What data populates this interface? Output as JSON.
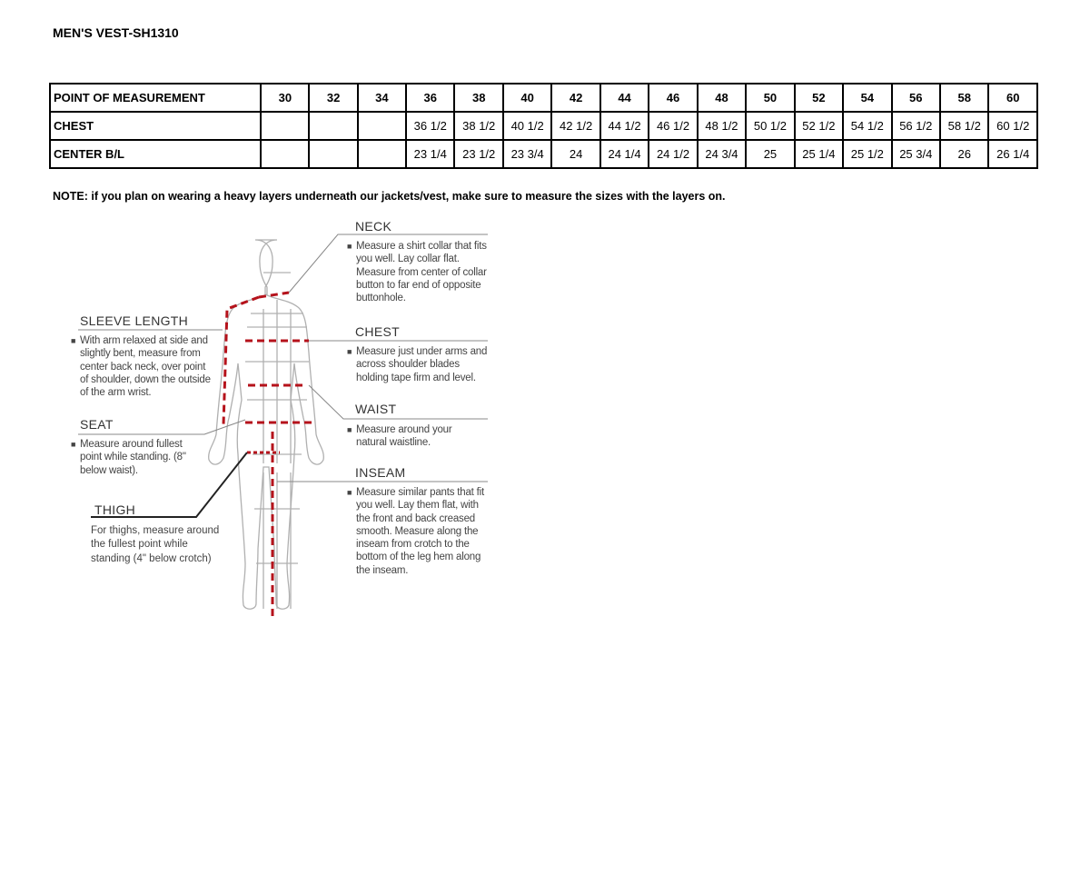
{
  "title": "MEN'S VEST-SH1310",
  "table": {
    "header": [
      "POINT OF MEASUREMENT",
      "30",
      "32",
      "34",
      "36",
      "38",
      "40",
      "42",
      "44",
      "46",
      "48",
      "50",
      "52",
      "54",
      "56",
      "58",
      "60"
    ],
    "rows": [
      [
        "CHEST",
        "",
        "",
        "",
        "36 1/2",
        "38 1/2",
        "40 1/2",
        "42 1/2",
        "44 1/2",
        "46 1/2",
        "48 1/2",
        "50 1/2",
        "52 1/2",
        "54 1/2",
        "56 1/2",
        "58 1/2",
        "60 1/2"
      ],
      [
        "CENTER B/L",
        "",
        "",
        "",
        "23 1/4",
        "23 1/2",
        "23 3/4",
        "24",
        "24 1/4",
        "24 1/2",
        "24 3/4",
        "25",
        "25 1/4",
        "25 1/2",
        "25 3/4",
        "26",
        "26 1/4"
      ]
    ]
  },
  "note": "NOTE: if you plan on wearing a heavy layers underneath our jackets/vest, make sure to measure the sizes with the layers on.",
  "guide": {
    "neck": {
      "label": "NECK",
      "text": "Measure a shirt collar that fits you well. Lay collar flat. Measure from center of collar button to far end of opposite buttonhole."
    },
    "chest": {
      "label": "CHEST",
      "text": "Measure just under arms and across shoulder blades holding tape firm and level."
    },
    "waist": {
      "label": "WAIST",
      "text": "Measure around your natural waistline."
    },
    "inseam": {
      "label": "INSEAM",
      "text": "Measure similar pants that fit you well. Lay them flat, with the front and back creased smooth. Measure along the inseam from crotch to the bottom of the leg hem along the inseam."
    },
    "sleeve": {
      "label": "SLEEVE LENGTH",
      "text": "With arm relaxed at side and slightly bent, measure from center back neck, over point of shoulder, down the outside of the arm wrist."
    },
    "seat": {
      "label": "SEAT",
      "text": "Measure around fullest point while standing. (8\" below waist)."
    },
    "thigh": {
      "label": "THIGH",
      "text": "For thighs, measure around the fullest point while standing (4\" below crotch)"
    }
  },
  "colors": {
    "measure_line": "#b5121b",
    "figure": "#b0b0b0"
  }
}
